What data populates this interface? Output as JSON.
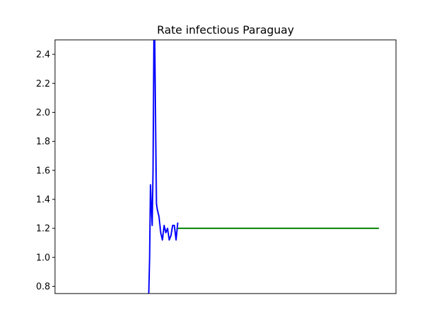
{
  "chart_data": {
    "type": "line",
    "title": "Rate infectious Paraguay",
    "xlabel": "",
    "ylabel": "",
    "xlim": [
      0,
      200
    ],
    "ylim": [
      0.75,
      2.5
    ],
    "yticks": [
      0.8,
      1.0,
      1.2,
      1.4,
      1.6,
      1.8,
      2.0,
      2.2,
      2.4
    ],
    "ytick_labels": [
      "0.8",
      "1.0",
      "1.2",
      "1.4",
      "1.6",
      "1.8",
      "2.0",
      "2.2",
      "2.4"
    ],
    "xticks_visible": false,
    "grid": false,
    "series": [
      {
        "color": "#0000ff",
        "x": [
          55,
          55.5,
          56,
          56.5,
          57,
          57.5,
          58,
          58.5,
          59,
          59.5,
          60,
          61,
          62,
          63,
          64,
          65,
          66,
          67,
          68,
          69,
          70,
          71,
          72
        ],
        "y": [
          0.75,
          1.0,
          1.5,
          1.35,
          1.22,
          1.6,
          2.5,
          2.5,
          1.9,
          1.37,
          1.33,
          1.28,
          1.17,
          1.12,
          1.22,
          1.17,
          1.2,
          1.12,
          1.15,
          1.22,
          1.22,
          1.12,
          1.24
        ]
      },
      {
        "color": "#008000",
        "x": [
          72,
          190
        ],
        "y": [
          1.2,
          1.2
        ]
      }
    ]
  }
}
